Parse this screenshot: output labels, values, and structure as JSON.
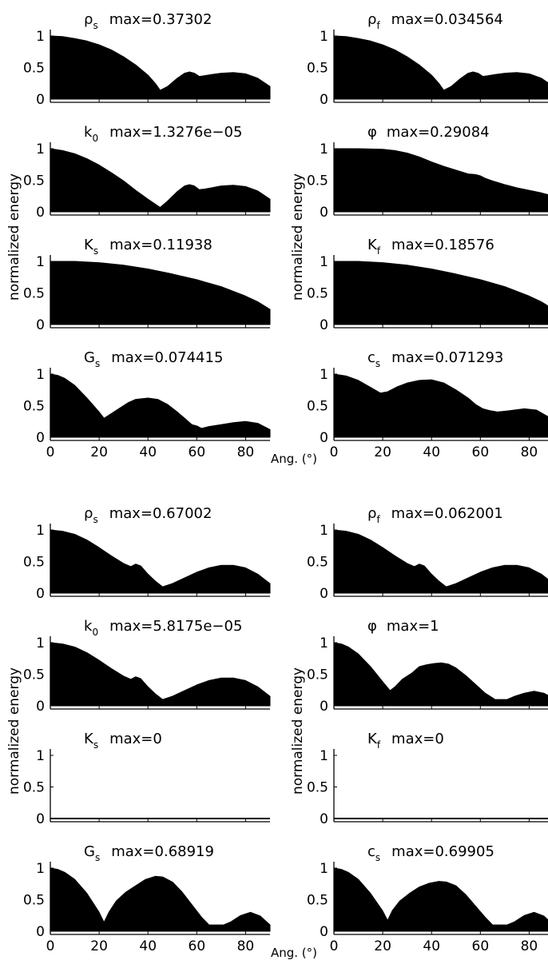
{
  "chart_data": {
    "type": "area",
    "fill_color": "#000000",
    "background": "#ffffff",
    "x_ticks": [
      "0",
      "20",
      "40",
      "60",
      "80"
    ],
    "y_ticks": [
      "0",
      "0.5",
      "1"
    ],
    "xlim": [
      0,
      90
    ],
    "ylim": [
      -0.05,
      1.1
    ],
    "ylabel": "normalized energy",
    "xlabel": "Ang. (°)",
    "blocks": [
      {
        "panels": [
          {
            "sym": "ρ",
            "sub": "s",
            "max": "max=0.37302",
            "x": [
              0,
              5,
              10,
              15,
              20,
              25,
              30,
              35,
              40,
              43,
              45,
              48,
              52,
              55,
              57,
              59,
              61,
              63,
              66,
              70,
              75,
              80,
              85,
              90
            ],
            "y": [
              1,
              0.99,
              0.96,
              0.92,
              0.86,
              0.78,
              0.67,
              0.54,
              0.38,
              0.25,
              0.14,
              0.2,
              0.33,
              0.41,
              0.43,
              0.41,
              0.36,
              0.37,
              0.39,
              0.41,
              0.42,
              0.4,
              0.33,
              0.2
            ]
          },
          {
            "sym": "ρ",
            "sub": "f",
            "max": "max=0.034564",
            "x": [
              0,
              5,
              10,
              15,
              20,
              25,
              30,
              35,
              40,
              43,
              45,
              48,
              52,
              55,
              57,
              59,
              61,
              63,
              66,
              70,
              75,
              80,
              85,
              90
            ],
            "y": [
              1,
              0.99,
              0.96,
              0.92,
              0.86,
              0.78,
              0.67,
              0.54,
              0.38,
              0.25,
              0.14,
              0.2,
              0.33,
              0.41,
              0.43,
              0.41,
              0.36,
              0.37,
              0.39,
              0.41,
              0.42,
              0.4,
              0.33,
              0.2
            ]
          },
          {
            "sym": "k",
            "sub": "0",
            "max": "max=1.3276e−05",
            "x": [
              0,
              5,
              10,
              15,
              20,
              25,
              30,
              35,
              40,
              45,
              48,
              52,
              55,
              57,
              59,
              61,
              63,
              66,
              70,
              75,
              80,
              85,
              90
            ],
            "y": [
              1,
              0.97,
              0.92,
              0.84,
              0.74,
              0.62,
              0.49,
              0.34,
              0.2,
              0.07,
              0.17,
              0.32,
              0.41,
              0.43,
              0.41,
              0.35,
              0.36,
              0.38,
              0.41,
              0.42,
              0.4,
              0.33,
              0.2
            ]
          },
          {
            "sym": "φ",
            "sub": "",
            "max": "max=0.29084",
            "x": [
              0,
              10,
              20,
              25,
              30,
              35,
              40,
              45,
              50,
              55,
              58,
              60,
              62,
              65,
              70,
              75,
              80,
              85,
              90
            ],
            "y": [
              1,
              1,
              0.99,
              0.97,
              0.93,
              0.87,
              0.79,
              0.72,
              0.66,
              0.6,
              0.59,
              0.57,
              0.53,
              0.49,
              0.43,
              0.38,
              0.34,
              0.3,
              0.25
            ]
          },
          {
            "sym": "K",
            "sub": "s",
            "max": "max=0.11938",
            "x": [
              0,
              10,
              20,
              30,
              40,
              50,
              60,
              70,
              80,
              85,
              90
            ],
            "y": [
              1,
              1,
              0.98,
              0.94,
              0.88,
              0.8,
              0.71,
              0.6,
              0.45,
              0.36,
              0.24
            ]
          },
          {
            "sym": "K",
            "sub": "f",
            "max": "max=0.18576",
            "x": [
              0,
              10,
              20,
              30,
              40,
              50,
              60,
              70,
              80,
              85,
              90
            ],
            "y": [
              1,
              1,
              0.98,
              0.94,
              0.88,
              0.8,
              0.71,
              0.6,
              0.45,
              0.36,
              0.24
            ]
          },
          {
            "sym": "G",
            "sub": "s",
            "max": "max=0.074415",
            "x": [
              0,
              3,
              6,
              10,
              15,
              20,
              22,
              24,
              28,
              32,
              35,
              40,
              44,
              48,
              52,
              55,
              58,
              60,
              62,
              65,
              70,
              75,
              80,
              85,
              90
            ],
            "y": [
              1,
              0.98,
              0.93,
              0.82,
              0.62,
              0.4,
              0.3,
              0.35,
              0.45,
              0.55,
              0.6,
              0.62,
              0.6,
              0.52,
              0.4,
              0.3,
              0.2,
              0.18,
              0.14,
              0.17,
              0.2,
              0.23,
              0.25,
              0.22,
              0.12
            ]
          },
          {
            "sym": "c",
            "sub": "s",
            "max": "max=0.071293",
            "x": [
              0,
              5,
              10,
              15,
              19,
              22,
              26,
              30,
              35,
              40,
              45,
              50,
              55,
              58,
              61,
              64,
              67,
              72,
              78,
              83,
              88,
              90
            ],
            "y": [
              1,
              0.97,
              0.9,
              0.79,
              0.7,
              0.72,
              0.8,
              0.86,
              0.9,
              0.91,
              0.86,
              0.75,
              0.62,
              0.52,
              0.45,
              0.42,
              0.4,
              0.42,
              0.45,
              0.43,
              0.32,
              0.27
            ]
          }
        ]
      },
      {
        "panels": [
          {
            "sym": "ρ",
            "sub": "s",
            "max": "max=0.67002",
            "x": [
              0,
              5,
              10,
              15,
              20,
              25,
              30,
              33,
              35,
              37,
              40,
              43,
              46,
              50,
              55,
              60,
              65,
              70,
              75,
              80,
              85,
              90
            ],
            "y": [
              1,
              0.98,
              0.93,
              0.84,
              0.72,
              0.59,
              0.47,
              0.42,
              0.46,
              0.43,
              0.3,
              0.19,
              0.1,
              0.15,
              0.24,
              0.33,
              0.4,
              0.44,
              0.44,
              0.4,
              0.3,
              0.15
            ]
          },
          {
            "sym": "ρ",
            "sub": "f",
            "max": "max=0.062001",
            "x": [
              0,
              5,
              10,
              15,
              20,
              25,
              30,
              33,
              35,
              37,
              40,
              43,
              46,
              50,
              55,
              60,
              65,
              70,
              75,
              80,
              85,
              90
            ],
            "y": [
              1,
              0.98,
              0.93,
              0.84,
              0.72,
              0.59,
              0.47,
              0.42,
              0.46,
              0.43,
              0.3,
              0.19,
              0.1,
              0.15,
              0.24,
              0.33,
              0.4,
              0.44,
              0.44,
              0.4,
              0.3,
              0.15
            ]
          },
          {
            "sym": "k",
            "sub": "0",
            "max": "max=5.8175e−05",
            "x": [
              0,
              5,
              10,
              15,
              20,
              25,
              30,
              33,
              35,
              37,
              40,
              43,
              46,
              50,
              55,
              60,
              65,
              70,
              75,
              80,
              85,
              90
            ],
            "y": [
              1,
              0.98,
              0.93,
              0.84,
              0.72,
              0.59,
              0.47,
              0.42,
              0.46,
              0.43,
              0.3,
              0.19,
              0.1,
              0.15,
              0.24,
              0.33,
              0.4,
              0.44,
              0.44,
              0.4,
              0.3,
              0.15
            ]
          },
          {
            "sym": "φ",
            "sub": "",
            "max": "max=1",
            "x": [
              0,
              3,
              6,
              10,
              15,
              20,
              23,
              25,
              28,
              32,
              35,
              38,
              41,
              44,
              47,
              50,
              54,
              58,
              62,
              66,
              68,
              71,
              74,
              78,
              82,
              86,
              90
            ],
            "y": [
              1,
              0.98,
              0.93,
              0.82,
              0.62,
              0.38,
              0.24,
              0.3,
              0.42,
              0.52,
              0.62,
              0.65,
              0.67,
              0.68,
              0.66,
              0.6,
              0.48,
              0.34,
              0.2,
              0.1,
              0.1,
              0.1,
              0.15,
              0.2,
              0.23,
              0.2,
              0.12
            ]
          },
          {
            "sym": "K",
            "sub": "s",
            "max": "max=0",
            "x": [
              0,
              90
            ],
            "y": [
              0,
              0
            ]
          },
          {
            "sym": "K",
            "sub": "f",
            "max": "max=0",
            "x": [
              0,
              90
            ],
            "y": [
              0,
              0
            ]
          },
          {
            "sym": "G",
            "sub": "s",
            "max": "max=0.68919",
            "x": [
              0,
              3,
              6,
              10,
              15,
              20,
              22,
              24,
              27,
              31,
              35,
              39,
              43,
              46,
              50,
              54,
              58,
              62,
              65,
              68,
              71,
              74,
              78,
              82,
              86,
              90
            ],
            "y": [
              1,
              0.98,
              0.93,
              0.82,
              0.6,
              0.3,
              0.14,
              0.3,
              0.48,
              0.62,
              0.72,
              0.82,
              0.87,
              0.86,
              0.78,
              0.62,
              0.42,
              0.22,
              0.1,
              0.1,
              0.1,
              0.15,
              0.25,
              0.3,
              0.24,
              0.1
            ]
          },
          {
            "sym": "c",
            "sub": "s",
            "max": "max=0.69905",
            "x": [
              0,
              3,
              6,
              10,
              15,
              20,
              22,
              24,
              27,
              31,
              35,
              39,
              43,
              46,
              50,
              54,
              58,
              62,
              65,
              68,
              71,
              74,
              78,
              82,
              86,
              90
            ],
            "y": [
              1,
              0.98,
              0.93,
              0.82,
              0.6,
              0.32,
              0.17,
              0.33,
              0.48,
              0.6,
              0.7,
              0.76,
              0.79,
              0.78,
              0.72,
              0.58,
              0.4,
              0.22,
              0.1,
              0.1,
              0.1,
              0.15,
              0.25,
              0.3,
              0.24,
              0.1
            ]
          }
        ]
      }
    ]
  }
}
